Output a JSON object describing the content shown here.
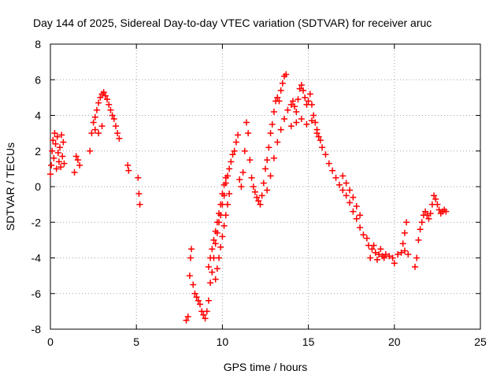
{
  "chart_data": {
    "type": "scatter",
    "title": "Day 144 of 2025, Sidereal Day-to-day VTEC variation (SDTVAR) for receiver aruc",
    "xlabel": "GPS time / hours",
    "ylabel": "SDTVAR / TECUs",
    "xlim": [
      0,
      25
    ],
    "ylim": [
      -8,
      8
    ],
    "xticks": [
      0,
      5,
      10,
      15,
      20,
      25
    ],
    "yticks": [
      -8,
      -6,
      -4,
      -2,
      0,
      2,
      4,
      6,
      8
    ],
    "grid": true,
    "marker": "+",
    "color": "#ff0000",
    "series": [
      {
        "name": "SDTVAR",
        "points": [
          [
            0.0,
            0.7
          ],
          [
            0.05,
            1.2
          ],
          [
            0.1,
            2.0
          ],
          [
            0.15,
            2.6
          ],
          [
            0.2,
            1.6
          ],
          [
            0.25,
            3.0
          ],
          [
            0.3,
            2.4
          ],
          [
            0.35,
            1.0
          ],
          [
            0.4,
            2.8
          ],
          [
            0.45,
            1.9
          ],
          [
            0.5,
            1.4
          ],
          [
            0.55,
            2.2
          ],
          [
            0.6,
            1.1
          ],
          [
            0.65,
            2.9
          ],
          [
            0.7,
            1.7
          ],
          [
            0.75,
            2.5
          ],
          [
            0.8,
            1.3
          ],
          [
            1.4,
            0.8
          ],
          [
            1.5,
            1.7
          ],
          [
            1.6,
            1.5
          ],
          [
            1.7,
            1.2
          ],
          [
            2.3,
            2.0
          ],
          [
            2.4,
            3.0
          ],
          [
            2.5,
            3.6
          ],
          [
            2.6,
            3.9
          ],
          [
            2.7,
            4.3
          ],
          [
            2.8,
            4.7
          ],
          [
            2.9,
            5.0
          ],
          [
            3.0,
            5.2
          ],
          [
            3.1,
            5.3
          ],
          [
            3.2,
            5.1
          ],
          [
            3.3,
            4.9
          ],
          [
            3.4,
            4.6
          ],
          [
            3.5,
            4.3
          ],
          [
            3.6,
            4.0
          ],
          [
            3.7,
            3.8
          ],
          [
            3.8,
            3.4
          ],
          [
            3.9,
            3.0
          ],
          [
            4.0,
            2.7
          ],
          [
            2.6,
            3.2
          ],
          [
            2.8,
            3.0
          ],
          [
            3.0,
            3.4
          ],
          [
            4.5,
            1.2
          ],
          [
            4.55,
            0.9
          ],
          [
            5.1,
            0.5
          ],
          [
            5.15,
            -0.4
          ],
          [
            5.2,
            -1.0
          ],
          [
            7.9,
            -7.5
          ],
          [
            8.0,
            -7.3
          ],
          [
            8.1,
            -5.0
          ],
          [
            8.15,
            -4.0
          ],
          [
            8.2,
            -3.5
          ],
          [
            8.3,
            -5.5
          ],
          [
            8.4,
            -6.0
          ],
          [
            8.5,
            -6.2
          ],
          [
            8.6,
            -6.4
          ],
          [
            8.7,
            -6.6
          ],
          [
            8.8,
            -7.0
          ],
          [
            8.9,
            -7.2
          ],
          [
            9.0,
            -7.4
          ],
          [
            9.1,
            -7.0
          ],
          [
            9.2,
            -6.4
          ],
          [
            9.3,
            -5.4
          ],
          [
            9.4,
            -4.8
          ],
          [
            9.5,
            -4.0
          ],
          [
            9.6,
            -3.2
          ],
          [
            9.7,
            -2.6
          ],
          [
            9.8,
            -2.0
          ],
          [
            9.9,
            -1.6
          ],
          [
            10.0,
            -1.0
          ],
          [
            10.1,
            -0.5
          ],
          [
            10.2,
            0.2
          ],
          [
            10.3,
            0.6
          ],
          [
            10.4,
            1.0
          ],
          [
            10.5,
            1.4
          ],
          [
            10.6,
            1.8
          ],
          [
            10.7,
            2.0
          ],
          [
            10.8,
            2.5
          ],
          [
            10.9,
            2.9
          ],
          [
            9.2,
            -4.5
          ],
          [
            9.3,
            -4.0
          ],
          [
            9.4,
            -3.5
          ],
          [
            9.5,
            -3.0
          ],
          [
            9.6,
            -2.5
          ],
          [
            9.7,
            -2.0
          ],
          [
            9.8,
            -1.5
          ],
          [
            9.9,
            -1.0
          ],
          [
            10.0,
            -0.4
          ],
          [
            10.1,
            0.1
          ],
          [
            10.2,
            0.5
          ],
          [
            9.6,
            -5.2
          ],
          [
            9.7,
            -4.6
          ],
          [
            9.8,
            -4.0
          ],
          [
            9.9,
            -3.4
          ],
          [
            10.0,
            -2.8
          ],
          [
            10.1,
            -2.2
          ],
          [
            10.2,
            -1.6
          ],
          [
            10.3,
            -1.0
          ],
          [
            10.4,
            -0.4
          ],
          [
            11.0,
            0.4
          ],
          [
            11.1,
            0.0
          ],
          [
            11.2,
            0.8
          ],
          [
            11.3,
            2.0
          ],
          [
            11.4,
            3.6
          ],
          [
            11.5,
            3.0
          ],
          [
            11.6,
            1.5
          ],
          [
            11.7,
            0.5
          ],
          [
            11.8,
            0.0
          ],
          [
            11.9,
            -0.3
          ],
          [
            12.0,
            -0.6
          ],
          [
            12.1,
            -0.8
          ],
          [
            12.2,
            -1.0
          ],
          [
            12.3,
            -0.5
          ],
          [
            12.4,
            0.2
          ],
          [
            12.5,
            1.0
          ],
          [
            12.6,
            1.5
          ],
          [
            12.7,
            2.2
          ],
          [
            12.8,
            3.0
          ],
          [
            12.9,
            3.5
          ],
          [
            13.0,
            4.2
          ],
          [
            13.1,
            4.8
          ],
          [
            13.2,
            5.0
          ],
          [
            13.3,
            4.8
          ],
          [
            13.4,
            5.4
          ],
          [
            13.5,
            5.8
          ],
          [
            13.6,
            6.2
          ],
          [
            13.7,
            6.3
          ],
          [
            12.6,
            -0.2
          ],
          [
            12.8,
            0.6
          ],
          [
            13.0,
            1.6
          ],
          [
            13.2,
            2.5
          ],
          [
            13.4,
            3.2
          ],
          [
            13.6,
            3.8
          ],
          [
            13.8,
            4.3
          ],
          [
            14.0,
            4.6
          ],
          [
            14.1,
            4.8
          ],
          [
            14.2,
            4.5
          ],
          [
            14.3,
            4.2
          ],
          [
            14.4,
            4.9
          ],
          [
            14.5,
            5.5
          ],
          [
            14.6,
            5.7
          ],
          [
            14.7,
            5.4
          ],
          [
            14.8,
            5.0
          ],
          [
            14.9,
            4.6
          ],
          [
            15.0,
            4.8
          ],
          [
            15.1,
            5.2
          ],
          [
            15.2,
            4.6
          ],
          [
            15.3,
            4.0
          ],
          [
            15.4,
            3.6
          ],
          [
            15.5,
            3.2
          ],
          [
            15.6,
            2.8
          ],
          [
            15.7,
            2.6
          ],
          [
            14.0,
            3.4
          ],
          [
            14.3,
            3.6
          ],
          [
            14.6,
            3.8
          ],
          [
            14.9,
            3.5
          ],
          [
            15.2,
            3.7
          ],
          [
            15.5,
            3.0
          ],
          [
            15.8,
            2.2
          ],
          [
            16.0,
            1.8
          ],
          [
            16.2,
            1.3
          ],
          [
            16.4,
            0.9
          ],
          [
            16.6,
            0.5
          ],
          [
            16.8,
            0.1
          ],
          [
            17.0,
            -0.2
          ],
          [
            17.2,
            -0.5
          ],
          [
            17.4,
            -0.9
          ],
          [
            17.6,
            -1.4
          ],
          [
            17.8,
            -1.8
          ],
          [
            18.0,
            -2.3
          ],
          [
            18.2,
            -2.7
          ],
          [
            18.4,
            -2.9
          ],
          [
            17.0,
            0.6
          ],
          [
            17.2,
            0.2
          ],
          [
            17.4,
            -0.2
          ],
          [
            17.6,
            -0.6
          ],
          [
            17.8,
            -1.1
          ],
          [
            18.0,
            -1.6
          ],
          [
            18.5,
            -3.3
          ],
          [
            18.7,
            -3.5
          ],
          [
            18.9,
            -3.7
          ],
          [
            19.1,
            -3.8
          ],
          [
            19.3,
            -3.9
          ],
          [
            19.5,
            -3.8
          ],
          [
            19.7,
            -3.9
          ],
          [
            19.9,
            -4.0
          ],
          [
            20.0,
            -4.3
          ],
          [
            18.6,
            -4.0
          ],
          [
            18.8,
            -3.3
          ],
          [
            19.0,
            -4.1
          ],
          [
            19.2,
            -3.5
          ],
          [
            19.4,
            -4.0
          ],
          [
            20.2,
            -3.8
          ],
          [
            20.4,
            -3.7
          ],
          [
            20.6,
            -3.6
          ],
          [
            20.8,
            -3.8
          ],
          [
            20.5,
            -3.2
          ],
          [
            20.6,
            -2.6
          ],
          [
            20.7,
            -2.0
          ],
          [
            21.2,
            -4.5
          ],
          [
            21.3,
            -4.0
          ],
          [
            21.4,
            -3.0
          ],
          [
            21.5,
            -2.4
          ],
          [
            21.6,
            -2.0
          ],
          [
            21.7,
            -1.6
          ],
          [
            21.8,
            -1.4
          ],
          [
            21.9,
            -1.6
          ],
          [
            22.0,
            -1.8
          ],
          [
            22.1,
            -1.5
          ],
          [
            22.2,
            -1.0
          ],
          [
            22.3,
            -0.5
          ],
          [
            22.4,
            -0.7
          ],
          [
            22.5,
            -1.0
          ],
          [
            22.6,
            -1.3
          ],
          [
            22.7,
            -1.5
          ],
          [
            22.8,
            -1.4
          ],
          [
            22.9,
            -1.3
          ],
          [
            23.0,
            -1.4
          ]
        ]
      }
    ]
  }
}
